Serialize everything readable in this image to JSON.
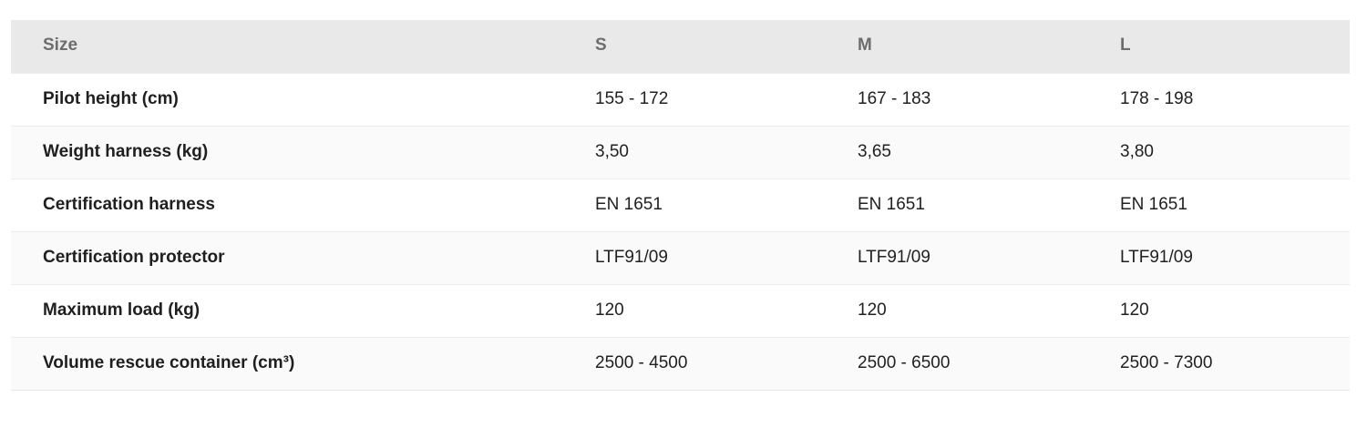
{
  "table": {
    "header": [
      "Size",
      "S",
      "M",
      "L"
    ],
    "rows": [
      {
        "label": "Pilot height (cm)",
        "values": [
          "155 - 172",
          "167 - 183",
          "178 - 198"
        ]
      },
      {
        "label": "Weight harness (kg)",
        "values": [
          "3,50",
          "3,65",
          "3,80"
        ]
      },
      {
        "label": "Certification harness",
        "values": [
          "EN 1651",
          "EN 1651",
          "EN 1651"
        ]
      },
      {
        "label": "Certification protector",
        "values": [
          "LTF91/09",
          "LTF91/09",
          "LTF91/09"
        ]
      },
      {
        "label": "Maximum load (kg)",
        "values": [
          "120",
          "120",
          "120"
        ]
      },
      {
        "label": "Volume rescue container (cm³)",
        "values": [
          "2500 - 4500",
          "2500 - 6500",
          "2500 - 7300"
        ]
      }
    ]
  },
  "colors": {
    "header_background": "#e9e9e9",
    "header_text": "#6d6d6d",
    "row_alt_background": "#fafafa",
    "row_background": "#ffffff",
    "body_text": "#212121",
    "row_separator": "#ededed"
  },
  "chart_data": {
    "type": "table",
    "title": "",
    "columns": [
      "Size",
      "S",
      "M",
      "L"
    ],
    "rows": [
      [
        "Pilot height (cm)",
        "155 - 172",
        "167 - 183",
        "178 - 198"
      ],
      [
        "Weight harness (kg)",
        "3,50",
        "3,65",
        "3,80"
      ],
      [
        "Certification harness",
        "EN 1651",
        "EN 1651",
        "EN 1651"
      ],
      [
        "Certification protector",
        "LTF91/09",
        "LTF91/09",
        "LTF91/09"
      ],
      [
        "Maximum load (kg)",
        "120",
        "120",
        "120"
      ],
      [
        "Volume rescue container (cm³)",
        "2500 - 4500",
        "2500 - 6500",
        "2500 - 7300"
      ]
    ],
    "layout": {
      "zebra_striping": true,
      "header_style": "gray-bold",
      "first_column_bold": true
    }
  }
}
